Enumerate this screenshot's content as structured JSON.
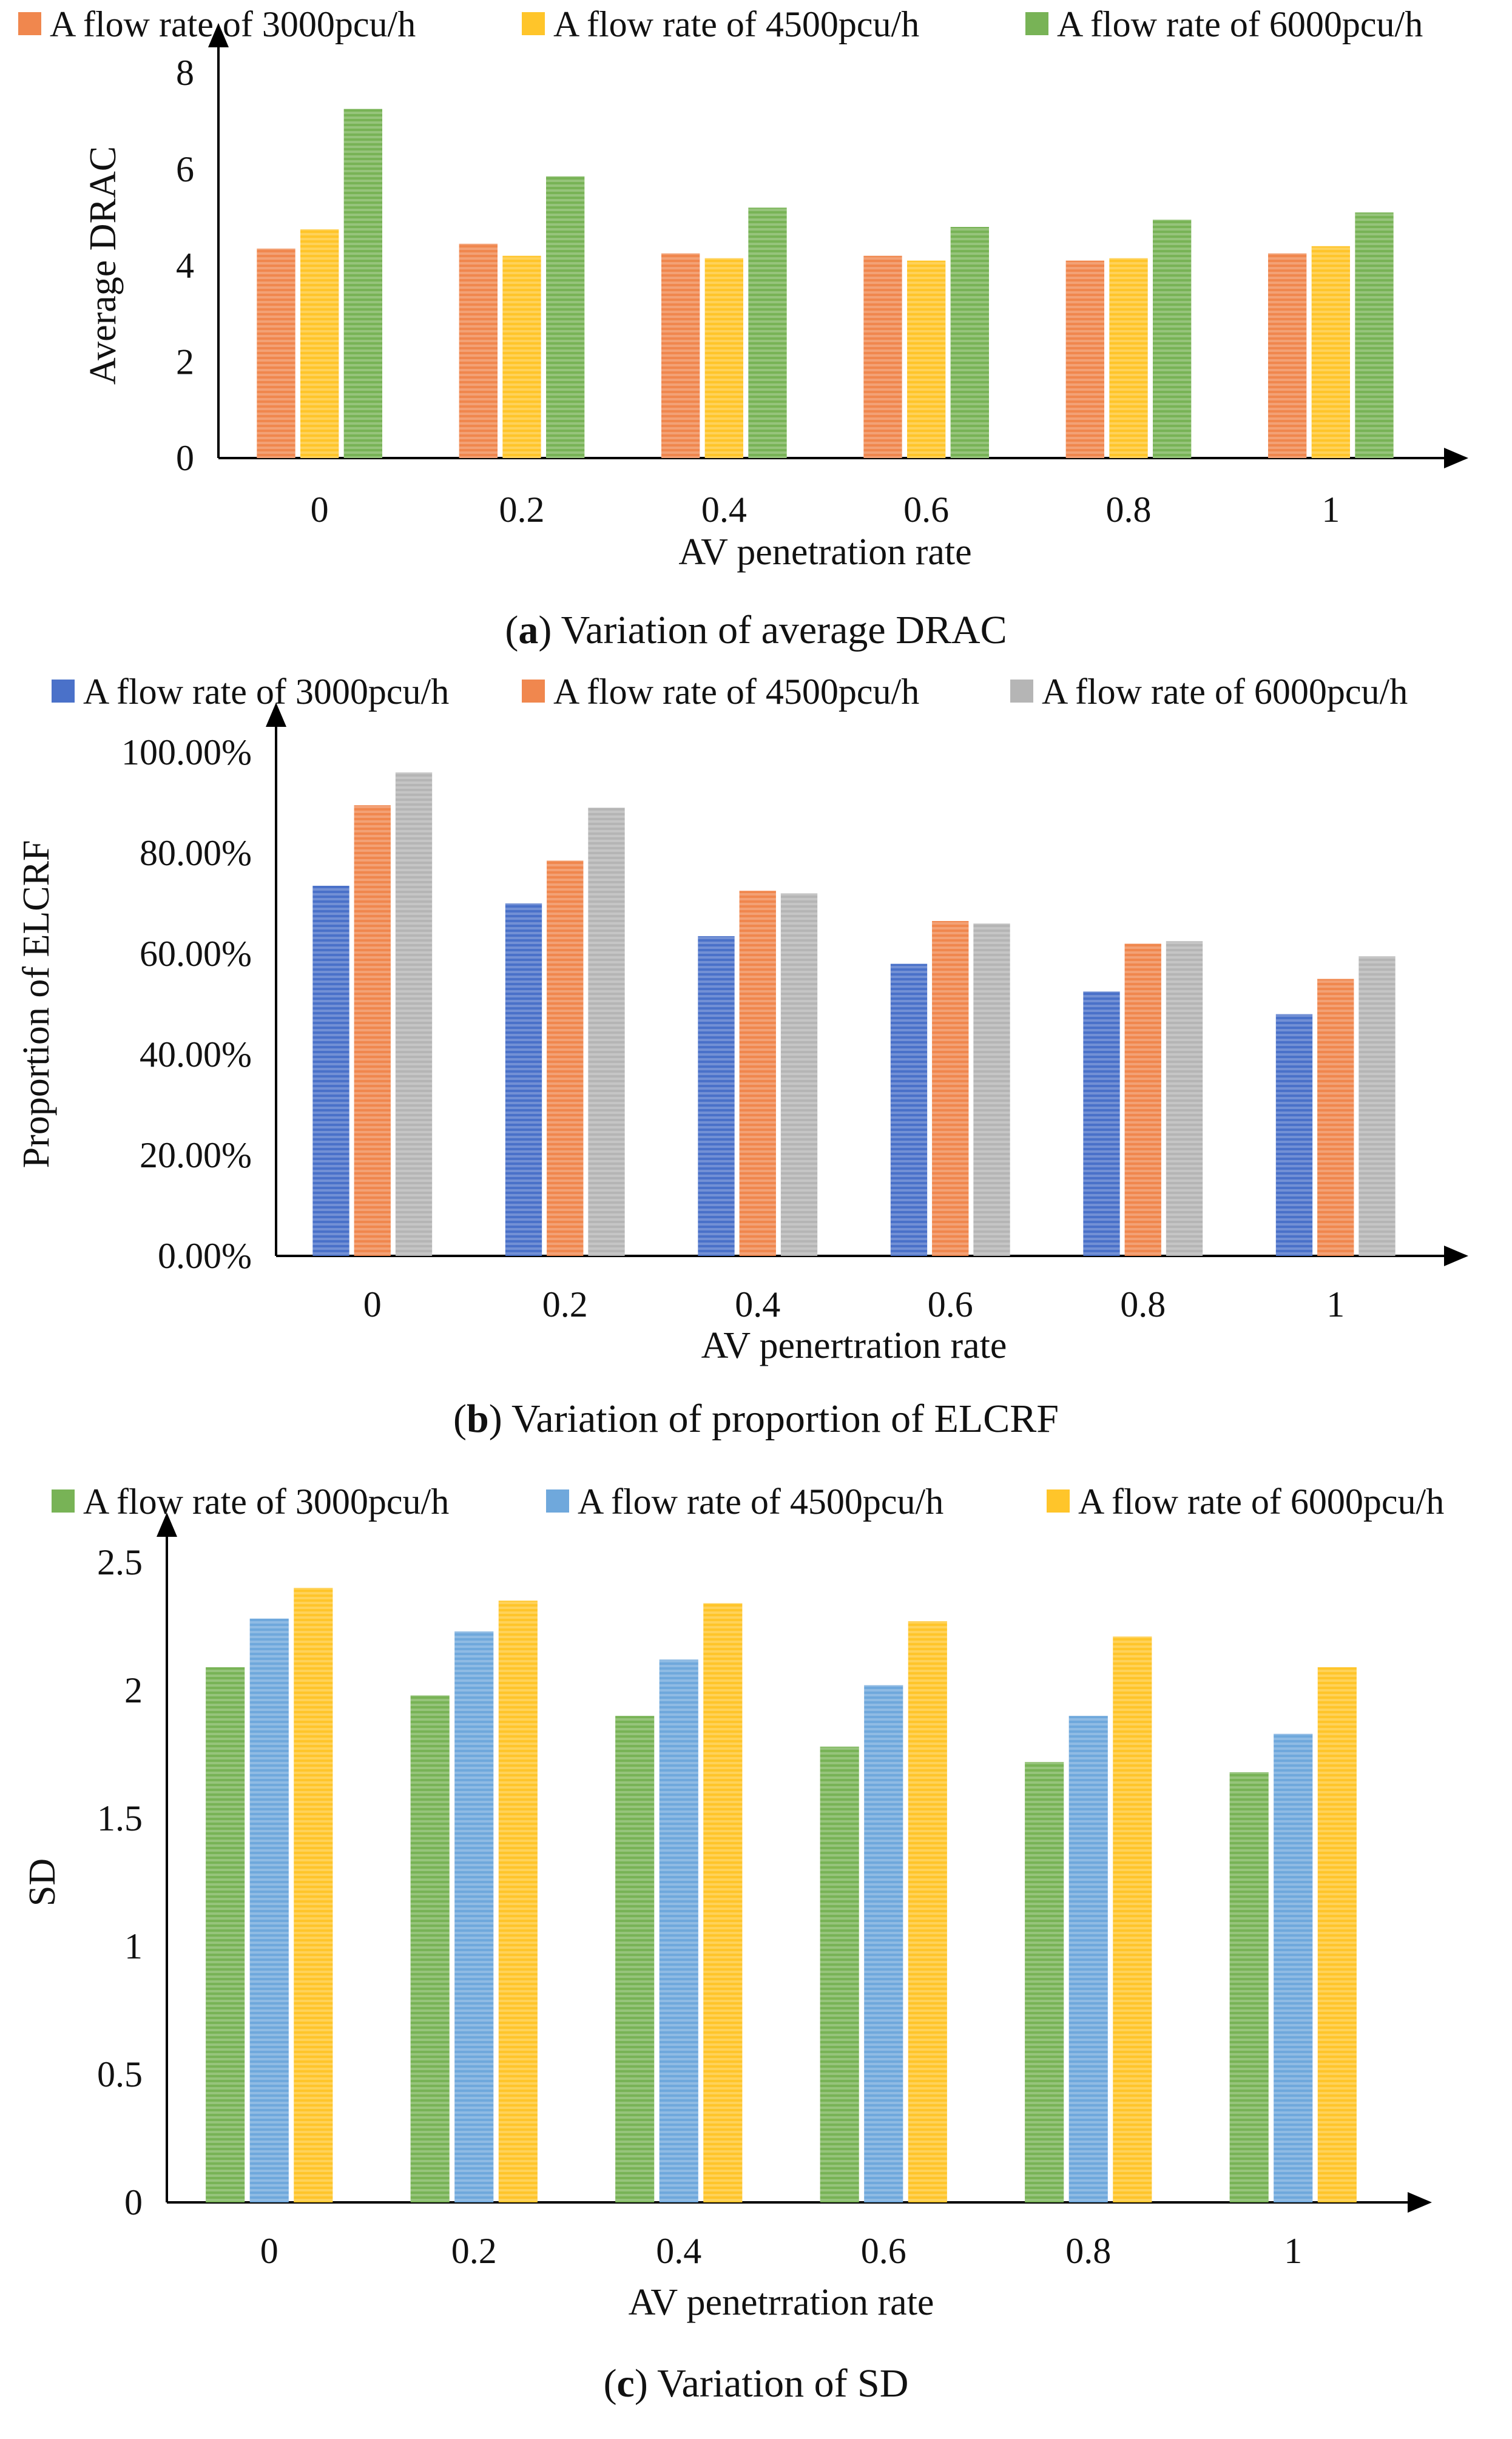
{
  "chart_data": [
    {
      "type": "bar",
      "title": "",
      "caption_letter": "a",
      "caption_text": "Variation of average DRAC",
      "categories": [
        "0",
        "0.2",
        "0.4",
        "0.6",
        "0.8",
        "1"
      ],
      "series": [
        {
          "name": "A flow rate of 3000pcu/h",
          "color": "#F0874E",
          "values": [
            4.35,
            4.45,
            4.25,
            4.2,
            4.1,
            4.25
          ]
        },
        {
          "name": "A flow rate of 4500pcu/h",
          "color": "#FFC52A",
          "values": [
            4.75,
            4.2,
            4.15,
            4.1,
            4.15,
            4.4
          ]
        },
        {
          "name": "A flow rate of 6000pcu/h",
          "color": "#78B356",
          "values": [
            7.25,
            5.85,
            5.2,
            4.8,
            4.95,
            5.1
          ]
        }
      ],
      "xlabel": "AV penetration rate",
      "ylabel": "Average DRAC",
      "ylim": [
        0,
        8
      ],
      "yticks": [
        0,
        2,
        4,
        6,
        8
      ],
      "ytick_labels": [
        "0",
        "2",
        "4",
        "6",
        "8"
      ],
      "grid": false,
      "legend": "top"
    },
    {
      "type": "bar",
      "title": "",
      "caption_letter": "b",
      "caption_text": "Variation of proportion of ELCRF",
      "categories": [
        "0",
        "0.2",
        "0.4",
        "0.6",
        "0.8",
        "1"
      ],
      "series": [
        {
          "name": "A flow rate of 3000pcu/h",
          "color": "#4A71C9",
          "values": [
            73.5,
            70,
            63.5,
            58,
            52.5,
            48
          ]
        },
        {
          "name": "A flow rate of 4500pcu/h",
          "color": "#F0874E",
          "values": [
            89.5,
            78.5,
            72.5,
            66.5,
            62,
            55
          ]
        },
        {
          "name": "A flow rate of 6000pcu/h",
          "color": "#B5B5B5",
          "values": [
            96,
            89,
            72,
            66,
            62.5,
            59.5
          ]
        }
      ],
      "xlabel": "AV penertration rate",
      "ylabel": "Proportion of ELCRF",
      "ylim": [
        0,
        100
      ],
      "yticks": [
        0,
        20,
        40,
        60,
        80,
        100
      ],
      "ytick_labels": [
        "0.00%",
        "20.00%",
        "40.00%",
        "60.00%",
        "80.00%",
        "100.00%"
      ],
      "grid": false,
      "legend": "top"
    },
    {
      "type": "bar",
      "title": "",
      "caption_letter": "c",
      "caption_text": "Variation of SD",
      "categories": [
        "0",
        "0.2",
        "0.4",
        "0.6",
        "0.8",
        "1"
      ],
      "series": [
        {
          "name": "A flow rate of 3000pcu/h",
          "color": "#78B356",
          "values": [
            2.09,
            1.98,
            1.9,
            1.78,
            1.72,
            1.68
          ]
        },
        {
          "name": "A flow rate of 4500pcu/h",
          "color": "#6FA8DC",
          "values": [
            2.28,
            2.23,
            2.12,
            2.02,
            1.9,
            1.83
          ]
        },
        {
          "name": "A flow rate of 6000pcu/h",
          "color": "#FFC52A",
          "values": [
            2.4,
            2.35,
            2.34,
            2.27,
            2.21,
            2.09
          ]
        }
      ],
      "xlabel": "AV penetrration rate",
      "ylabel": "SD",
      "ylim": [
        0,
        2.5
      ],
      "yticks": [
        0,
        0.5,
        1,
        1.5,
        2,
        2.5
      ],
      "ytick_labels": [
        "0",
        "0.5",
        "1",
        "1.5",
        "2",
        "2.5"
      ],
      "grid": false,
      "legend": "top"
    }
  ]
}
